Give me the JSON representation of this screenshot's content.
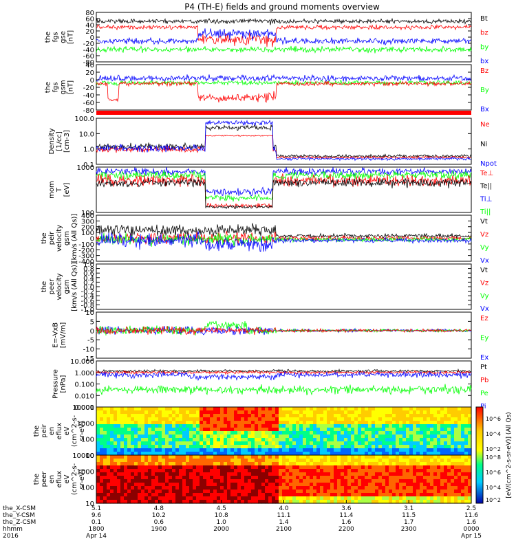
{
  "title": "P4 (TH-E) fields and ground moments overview",
  "colors": {
    "black": "#000000",
    "red": "#ff0000",
    "green": "#00ff00",
    "blue": "#0000ff"
  },
  "chart_data": [
    {
      "type": "line",
      "ylabel": [
        "the",
        "fgs",
        "gse",
        "[nT]"
      ],
      "yticks": [
        "80",
        "60",
        "40",
        "20",
        "0",
        "-20",
        "-40",
        "-60",
        "-80"
      ],
      "legend": [
        "Bt",
        "bz",
        "by",
        "bx"
      ],
      "legend_colors": [
        "#000000",
        "#ff0000",
        "#00ff00",
        "#0000ff"
      ]
    },
    {
      "type": "line",
      "ylabel": [
        "the",
        "fgs",
        "gsm",
        "[nT]"
      ],
      "yticks": [
        "40",
        "20",
        "0",
        "-20",
        "-40",
        "-60",
        "-80"
      ],
      "legend": [
        "Bz",
        "By",
        "Bx"
      ],
      "legend_colors": [
        "#ff0000",
        "#00ff00",
        "#0000ff"
      ]
    },
    {
      "type": "line",
      "ylabel": [
        "Density",
        "[1/cc]",
        "[cm-3]"
      ],
      "yticks": [
        "100.0",
        "10.0",
        "1.0",
        "0.1"
      ],
      "yscale": "log",
      "legend": [
        "Ne",
        "Ni",
        "Npot"
      ],
      "legend_colors": [
        "#ff0000",
        "#000000",
        "#0000ff"
      ]
    },
    {
      "type": "line",
      "ylabel": [
        "mom",
        "T",
        "[eV]"
      ],
      "yticks": [
        "1000",
        "100"
      ],
      "yscale": "log",
      "legend": [
        "Te⊥",
        "Te||",
        "Ti⊥",
        "Ti||"
      ],
      "legend_colors": [
        "#ff0000",
        "#000000",
        "#0000ff",
        "#00ff00"
      ]
    },
    {
      "type": "line",
      "ylabel": [
        "the",
        "peir",
        "velocity",
        "gsm",
        "[km/s (All Qs)]"
      ],
      "yticks": [
        "400",
        "300",
        "200",
        "100",
        "0",
        "-100",
        "-200",
        "-300",
        "-400"
      ],
      "legend": [
        "Vt",
        "Vz",
        "Vy",
        "Vx"
      ],
      "legend_colors": [
        "#000000",
        "#ff0000",
        "#00ff00",
        "#0000ff"
      ]
    },
    {
      "type": "line",
      "ylabel": [
        "the",
        "peer",
        "velocity",
        "gsm",
        "[km/s (All Qs)]"
      ],
      "yticks": [
        "1.0",
        "0.8",
        "0.6",
        "0.4",
        "0.2",
        "0.0",
        "-0.2",
        "-0.4",
        "-0.6",
        "-0.8",
        "-1.0"
      ],
      "legend": [
        "Vt",
        "Vz",
        "Vy",
        "Vx"
      ],
      "legend_colors": [
        "#000000",
        "#ff0000",
        "#00ff00",
        "#0000ff"
      ]
    },
    {
      "type": "line",
      "ylabel": [
        "E=-VxB",
        "[mV/m]"
      ],
      "yticks": [
        "10",
        "5",
        "0",
        "-5",
        "-10",
        "-15"
      ],
      "legend": [
        "Ez",
        "Ey",
        "Ex"
      ],
      "legend_colors": [
        "#ff0000",
        "#00ff00",
        "#0000ff"
      ]
    },
    {
      "type": "line",
      "ylabel": [
        "Pressure",
        "[nPa]"
      ],
      "yticks": [
        "10.000",
        "1.000",
        "0.100",
        "0.010",
        "0.001"
      ],
      "yscale": "log",
      "legend": [
        "Pt",
        "Pb",
        "Pe",
        "Pi"
      ],
      "legend_colors": [
        "#000000",
        "#ff0000",
        "#00ff00",
        "#0000ff"
      ]
    },
    {
      "type": "heatmap",
      "ylabel": [
        "the",
        "peir",
        "en",
        "eflux",
        "eV",
        "(cm^2-s-",
        "sr-eV)"
      ],
      "yticks": [
        "10000",
        "1000",
        "100",
        "10"
      ],
      "yscale": "log"
    },
    {
      "type": "heatmap",
      "ylabel": [
        "the",
        "peer",
        "en",
        "eflux",
        "eV",
        "(cm^2-s-",
        "sr-eV)"
      ],
      "yticks": [
        "10000",
        "1000",
        "100",
        "10"
      ],
      "yscale": "log"
    }
  ],
  "colorbar": {
    "label": "[eV/(cm^2-s-sr-eV)] (All Qs)",
    "ticks_upper": [
      "10^6",
      "10^4",
      "10^2"
    ],
    "ticks_lower": [
      "10^8",
      "10^6",
      "10^4",
      "10^2"
    ]
  },
  "time_axis": {
    "row_labels": [
      "the_X-CSM",
      "the_Y-CSM",
      "the_Z-CSM",
      "hhmm",
      "2016"
    ],
    "columns": [
      {
        "x": "5.1",
        "y": "9.6",
        "z": "0.1",
        "hhmm": "1800",
        "date": "Apr 14"
      },
      {
        "x": "4.8",
        "y": "10.2",
        "z": "0.6",
        "hhmm": "1900",
        "date": ""
      },
      {
        "x": "4.5",
        "y": "10.8",
        "z": "1.0",
        "hhmm": "2000",
        "date": ""
      },
      {
        "x": "4.0",
        "y": "11.1",
        "z": "1.4",
        "hhmm": "2100",
        "date": ""
      },
      {
        "x": "3.6",
        "y": "11.4",
        "z": "1.6",
        "hhmm": "2200",
        "date": ""
      },
      {
        "x": "3.1",
        "y": "11.5",
        "z": "1.7",
        "hhmm": "2300",
        "date": ""
      },
      {
        "x": "2.5",
        "y": "11.6",
        "z": "1.6",
        "hhmm": "0000",
        "date": "Apr 15"
      }
    ]
  }
}
